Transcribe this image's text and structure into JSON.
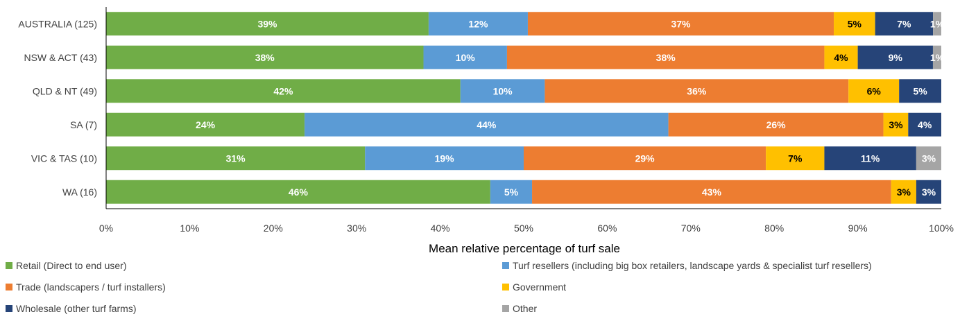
{
  "chart_data": {
    "type": "bar",
    "orientation": "horizontal",
    "stacked": true,
    "xlabel": "Mean relative percentage of turf sale",
    "ylabel": "",
    "xlim": [
      0,
      100
    ],
    "x_tick_labels": [
      "0%",
      "10%",
      "20%",
      "30%",
      "40%",
      "50%",
      "60%",
      "70%",
      "80%",
      "90%",
      "100%"
    ],
    "categories": [
      "AUSTRALIA (125)",
      "NSW & ACT (43)",
      "QLD & NT (49)",
      "SA (7)",
      "VIC & TAS (10)",
      "WA (16)"
    ],
    "series": [
      {
        "name": "Retail (Direct to end user)",
        "color": "#70ad47",
        "label_color": "#ffffff",
        "values": [
          39,
          38,
          42,
          24,
          31,
          46
        ],
        "labels": [
          "39%",
          "38%",
          "42%",
          "24%",
          "31%",
          "46%"
        ]
      },
      {
        "name": "Turf resellers (including big box retailers, landscape yards & specialist turf resellers)",
        "color": "#5b9bd5",
        "label_color": "#ffffff",
        "values": [
          12,
          10,
          10,
          44,
          19,
          5
        ],
        "labels": [
          "12%",
          "10%",
          "10%",
          "44%",
          "19%",
          "5%"
        ]
      },
      {
        "name": "Trade (landscapers / turf installers)",
        "color": "#ed7d31",
        "label_color": "#ffffff",
        "values": [
          37,
          38,
          36,
          26,
          29,
          43
        ],
        "labels": [
          "37%",
          "38%",
          "36%",
          "26%",
          "29%",
          "43%"
        ]
      },
      {
        "name": "Government",
        "color": "#ffc000",
        "label_color": "#000000",
        "values": [
          5,
          4,
          6,
          3,
          7,
          3
        ],
        "labels": [
          "5%",
          "4%",
          "6%",
          "3%",
          "7%",
          "3%"
        ]
      },
      {
        "name": "Wholesale (other turf farms)",
        "color": "#264478",
        "label_color": "#ffffff",
        "values": [
          7,
          9,
          5,
          4,
          11,
          3
        ],
        "labels": [
          "7%",
          "9%",
          "5%",
          "4%",
          "11%",
          "3%"
        ]
      },
      {
        "name": "Other",
        "color": "#a5a5a5",
        "label_color": "#ffffff",
        "values": [
          1,
          1,
          0,
          0,
          3,
          0
        ],
        "labels": [
          "1%",
          "1%",
          "",
          "",
          "3%",
          ""
        ]
      }
    ],
    "grid": false,
    "legend_position": "bottom"
  }
}
